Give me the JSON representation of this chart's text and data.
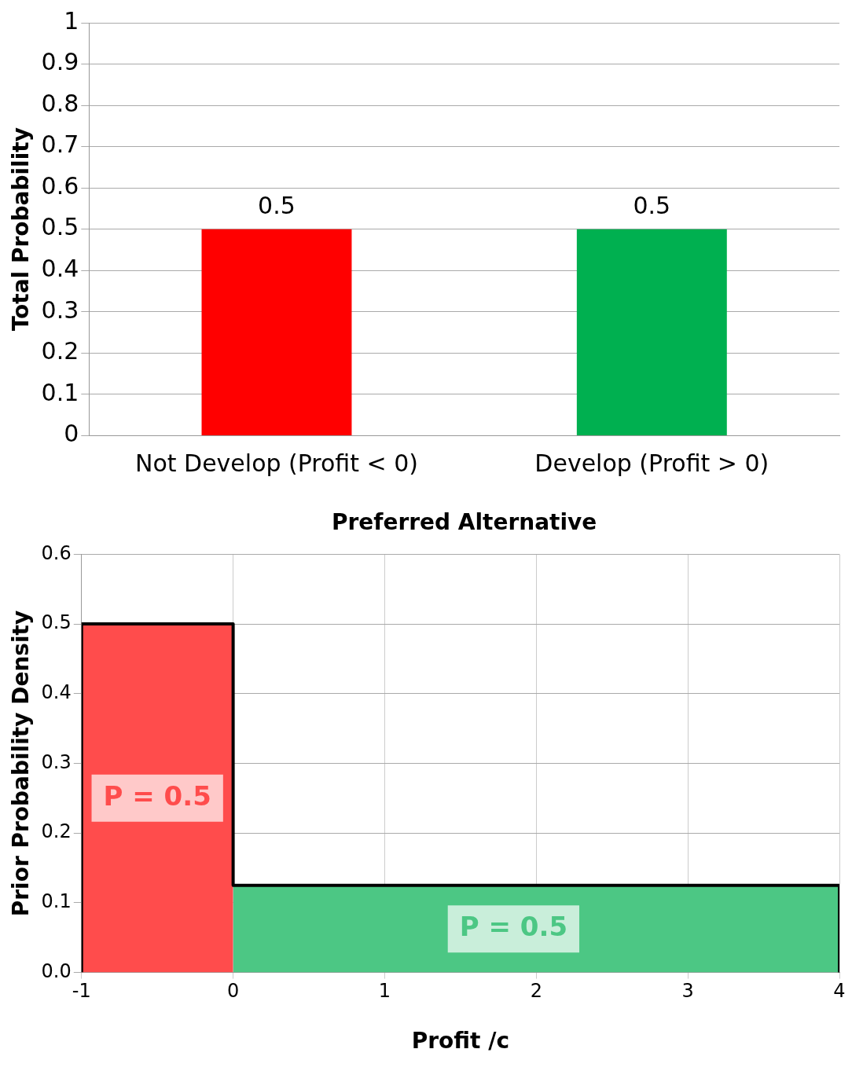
{
  "chart_data": [
    {
      "type": "bar",
      "categories": [
        "Not Develop (Profit < 0)",
        "Develop (Profit > 0)"
      ],
      "values": [
        0.5,
        0.5
      ],
      "colors": [
        "#ff0000",
        "#00b050"
      ],
      "ylim": [
        0,
        1
      ],
      "yticks": [
        0,
        0.1,
        0.2,
        0.3,
        0.4,
        0.5,
        0.6,
        0.7,
        0.8,
        0.9,
        1
      ],
      "grid": "y",
      "legend": false,
      "data_labels": true,
      "ylabel": "Total Probability",
      "xlabel": "Preferred Alternative"
    },
    {
      "type": "area",
      "series": [
        {
          "color": "#ff4c4c",
          "x": [
            -1,
            0
          ],
          "values": [
            0.5,
            0.5
          ]
        },
        {
          "color": "#4cc784",
          "x": [
            0,
            4
          ],
          "values": [
            0.125,
            0.125
          ]
        },
        {
          "type": "line",
          "color": "#000000",
          "x": [
            -1,
            -1,
            0,
            0,
            4,
            4
          ],
          "values": [
            0,
            0.5,
            0.5,
            0.125,
            0.125,
            0
          ]
        }
      ],
      "xlim": [
        -1,
        4
      ],
      "xticks": [
        -1,
        0,
        1,
        2,
        3,
        4
      ],
      "ylim": [
        0,
        0.6
      ],
      "yticks": [
        {
          "value": 0,
          "label": "0.0"
        },
        0.1,
        0.2,
        0.3,
        0.4,
        0.5,
        0.6
      ],
      "grid": true,
      "legend": false,
      "ylabel": "Prior Probability Density",
      "xlabel": "Profit /c",
      "annotations": [
        "P = 0.5",
        "P = 0.5"
      ]
    }
  ]
}
